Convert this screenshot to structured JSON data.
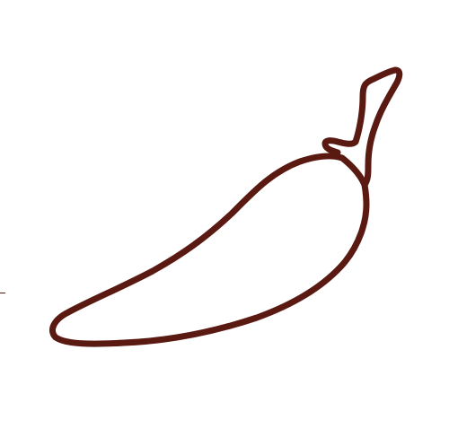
{
  "illustration": {
    "subject": "chili-pepper",
    "style": "line-art outline",
    "stroke_color": "#5a1a12",
    "fill_color": "#ffffff",
    "background_color": "#ffffff"
  }
}
